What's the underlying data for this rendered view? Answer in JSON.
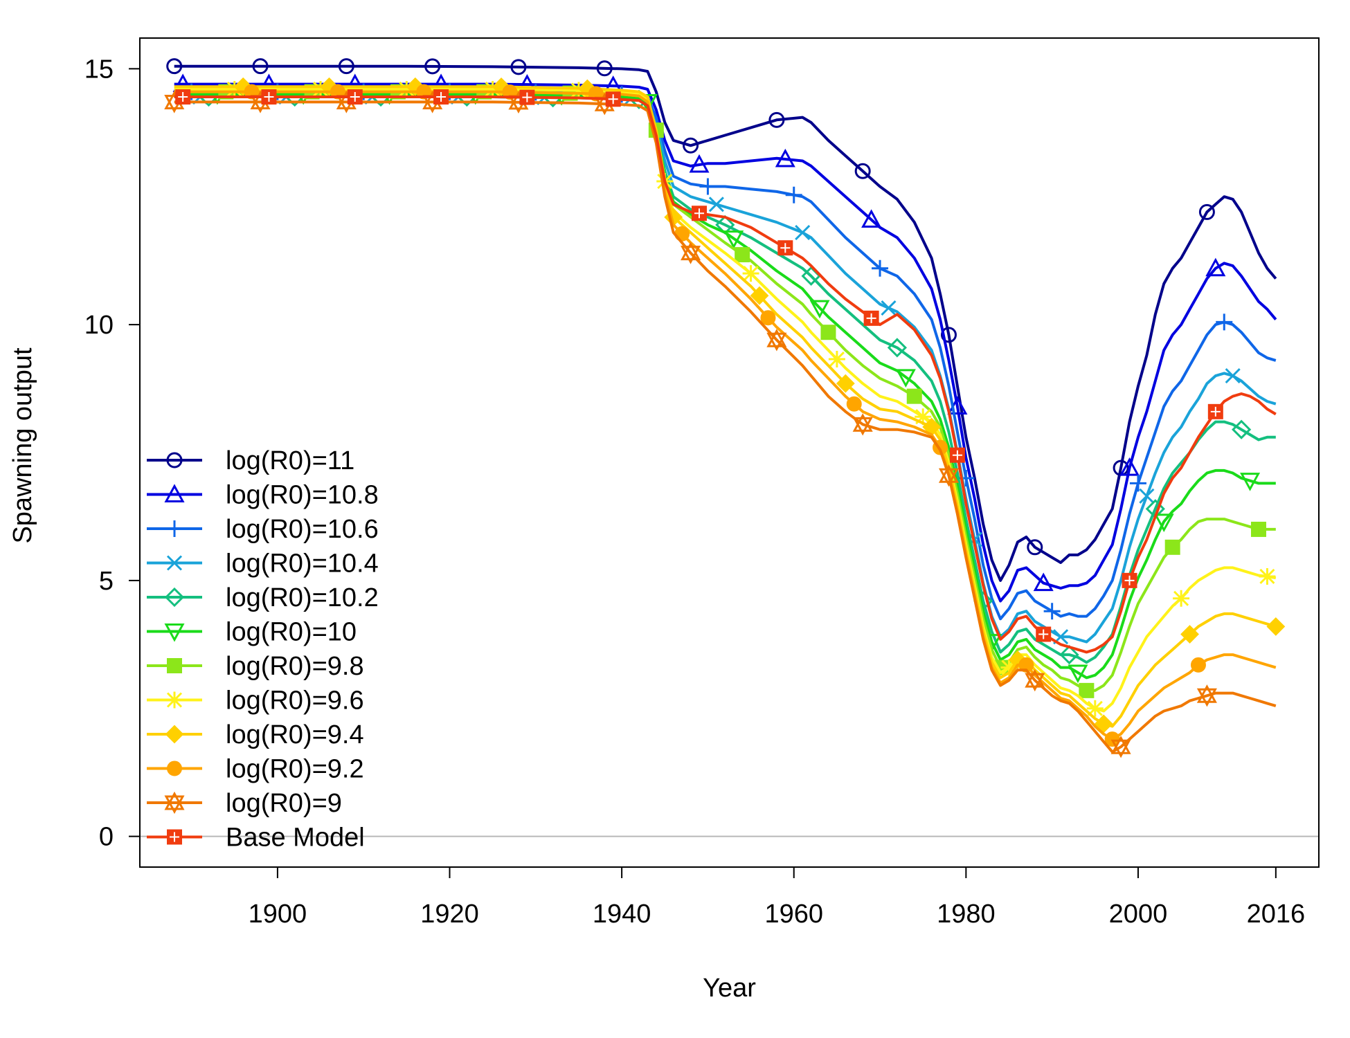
{
  "chart_data": {
    "type": "line",
    "title": "",
    "xlabel": "Year",
    "ylabel": "Spawning output",
    "xlim": [
      1884,
      2021
    ],
    "ylim": [
      -0.6,
      15.6
    ],
    "xticks": [
      1900,
      1920,
      1940,
      1960,
      1980,
      2000,
      2016
    ],
    "yticks": [
      0,
      5,
      10,
      15
    ],
    "reference_line_y": 0,
    "grid": false,
    "legend_position": "left",
    "x": [
      1888,
      1895,
      1905,
      1915,
      1925,
      1935,
      1940,
      1942,
      1943,
      1944,
      1945,
      1946,
      1948,
      1950,
      1952,
      1955,
      1958,
      1961,
      1962,
      1964,
      1966,
      1968,
      1970,
      1972,
      1974,
      1976,
      1977,
      1978,
      1979,
      1980,
      1981,
      1982,
      1983,
      1984,
      1985,
      1986,
      1987,
      1988,
      1989,
      1990,
      1991,
      1992,
      1993,
      1994,
      1995,
      1996,
      1997,
      1998,
      1999,
      2000,
      2001,
      2002,
      2003,
      2004,
      2005,
      2006,
      2007,
      2008,
      2009,
      2010,
      2011,
      2012,
      2013,
      2014,
      2015,
      2016
    ],
    "series": [
      {
        "name": "log(R0)=11",
        "color": "#00008B",
        "marker": "circle",
        "values": [
          15.05,
          15.05,
          15.05,
          15.05,
          15.04,
          15.02,
          15.0,
          14.98,
          14.95,
          14.55,
          13.95,
          13.6,
          13.5,
          13.6,
          13.7,
          13.85,
          14.0,
          14.05,
          13.95,
          13.6,
          13.3,
          13.0,
          12.7,
          12.45,
          12.0,
          11.3,
          10.6,
          9.8,
          8.8,
          7.8,
          7.0,
          6.1,
          5.4,
          5.0,
          5.3,
          5.75,
          5.85,
          5.65,
          5.55,
          5.45,
          5.35,
          5.5,
          5.5,
          5.6,
          5.8,
          6.1,
          6.4,
          7.2,
          8.1,
          8.8,
          9.4,
          10.2,
          10.8,
          11.1,
          11.3,
          11.6,
          11.9,
          12.2,
          12.35,
          12.5,
          12.45,
          12.2,
          11.8,
          11.4,
          11.1,
          10.9
        ]
      },
      {
        "name": "log(R0)=10.8",
        "color": "#0000E0",
        "marker": "triangle",
        "values": [
          14.7,
          14.7,
          14.7,
          14.7,
          14.7,
          14.68,
          14.66,
          14.64,
          14.6,
          14.2,
          13.6,
          13.2,
          13.1,
          13.15,
          13.15,
          13.2,
          13.25,
          13.2,
          13.1,
          12.8,
          12.5,
          12.2,
          11.9,
          11.7,
          11.3,
          10.7,
          10.1,
          9.3,
          8.4,
          7.4,
          6.6,
          5.7,
          5.0,
          4.6,
          4.8,
          5.2,
          5.25,
          5.1,
          4.95,
          4.9,
          4.85,
          4.9,
          4.9,
          4.95,
          5.1,
          5.4,
          5.7,
          6.4,
          7.2,
          7.8,
          8.3,
          8.9,
          9.5,
          9.8,
          10.0,
          10.3,
          10.6,
          10.9,
          11.1,
          11.2,
          11.15,
          10.95,
          10.7,
          10.45,
          10.3,
          10.1
        ]
      },
      {
        "name": "log(R0)=10.6",
        "color": "#0F66E8",
        "marker": "plus",
        "values": [
          14.55,
          14.55,
          14.55,
          14.55,
          14.55,
          14.53,
          14.5,
          14.48,
          14.45,
          14.05,
          13.4,
          12.9,
          12.75,
          12.7,
          12.7,
          12.65,
          12.6,
          12.5,
          12.4,
          12.05,
          11.7,
          11.4,
          11.1,
          10.95,
          10.6,
          10.1,
          9.55,
          8.8,
          7.9,
          7.0,
          6.2,
          5.3,
          4.65,
          4.25,
          4.45,
          4.75,
          4.8,
          4.6,
          4.5,
          4.4,
          4.3,
          4.35,
          4.3,
          4.3,
          4.45,
          4.7,
          5.0,
          5.6,
          6.3,
          6.9,
          7.4,
          7.9,
          8.4,
          8.7,
          8.9,
          9.2,
          9.5,
          9.8,
          10.0,
          10.05,
          10.0,
          9.85,
          9.65,
          9.45,
          9.35,
          9.3
        ]
      },
      {
        "name": "log(R0)=10.4",
        "color": "#1AA3D9",
        "marker": "x",
        "values": [
          14.45,
          14.45,
          14.45,
          14.45,
          14.45,
          14.43,
          14.42,
          14.4,
          14.35,
          13.9,
          13.2,
          12.7,
          12.5,
          12.4,
          12.3,
          12.15,
          12.0,
          11.8,
          11.7,
          11.35,
          11.0,
          10.7,
          10.4,
          10.25,
          9.95,
          9.5,
          9.0,
          8.35,
          7.5,
          6.6,
          5.8,
          4.95,
          4.3,
          3.9,
          4.05,
          4.35,
          4.4,
          4.2,
          4.1,
          4.0,
          3.9,
          3.9,
          3.85,
          3.8,
          3.95,
          4.2,
          4.45,
          5.0,
          5.65,
          6.2,
          6.65,
          7.1,
          7.5,
          7.8,
          8.0,
          8.3,
          8.55,
          8.85,
          9.0,
          9.05,
          9.0,
          8.9,
          8.75,
          8.6,
          8.5,
          8.45
        ]
      },
      {
        "name": "log(R0)=10.2",
        "color": "#14BF7F",
        "marker": "diamond",
        "values": [
          14.45,
          14.45,
          14.45,
          14.45,
          14.45,
          14.43,
          14.42,
          14.4,
          14.33,
          13.8,
          13.0,
          12.5,
          12.25,
          12.1,
          11.95,
          11.7,
          11.4,
          11.1,
          10.95,
          10.6,
          10.3,
          10.0,
          9.7,
          9.55,
          9.3,
          8.9,
          8.5,
          7.9,
          7.1,
          6.2,
          5.4,
          4.6,
          4.0,
          3.6,
          3.75,
          4.0,
          4.05,
          3.85,
          3.75,
          3.65,
          3.55,
          3.55,
          3.5,
          3.4,
          3.5,
          3.7,
          3.95,
          4.5,
          5.1,
          5.6,
          6.0,
          6.4,
          6.8,
          7.1,
          7.3,
          7.5,
          7.75,
          7.95,
          8.1,
          8.1,
          8.05,
          7.95,
          7.85,
          7.75,
          7.8,
          7.8
        ]
      },
      {
        "name": "log(R0)=10",
        "color": "#1ADB1A",
        "marker": "triangle-down",
        "values": [
          14.5,
          14.5,
          14.5,
          14.5,
          14.5,
          14.48,
          14.45,
          14.43,
          14.35,
          13.8,
          12.9,
          12.4,
          12.15,
          11.95,
          11.8,
          11.45,
          11.05,
          10.7,
          10.5,
          10.15,
          9.85,
          9.55,
          9.25,
          9.1,
          8.85,
          8.5,
          8.15,
          7.6,
          6.85,
          6.0,
          5.2,
          4.4,
          3.8,
          3.45,
          3.55,
          3.8,
          3.85,
          3.65,
          3.55,
          3.45,
          3.3,
          3.3,
          3.2,
          3.1,
          3.15,
          3.3,
          3.55,
          4.05,
          4.6,
          5.05,
          5.4,
          5.8,
          6.15,
          6.35,
          6.5,
          6.75,
          6.95,
          7.1,
          7.15,
          7.15,
          7.1,
          7.0,
          6.95,
          6.9,
          6.9,
          6.9
        ]
      },
      {
        "name": "log(R0)=9.8",
        "color": "#8CE61A",
        "marker": "square-filled",
        "values": [
          14.55,
          14.55,
          14.55,
          14.55,
          14.55,
          14.52,
          14.5,
          14.47,
          14.38,
          13.8,
          12.85,
          12.35,
          12.1,
          11.85,
          11.6,
          11.25,
          10.8,
          10.4,
          10.2,
          9.85,
          9.5,
          9.2,
          8.95,
          8.8,
          8.6,
          8.3,
          8.0,
          7.45,
          6.7,
          5.85,
          5.05,
          4.25,
          3.65,
          3.3,
          3.4,
          3.65,
          3.7,
          3.5,
          3.35,
          3.25,
          3.1,
          3.05,
          2.95,
          2.85,
          2.85,
          2.95,
          3.15,
          3.6,
          4.1,
          4.55,
          4.85,
          5.15,
          5.45,
          5.65,
          5.8,
          6.0,
          6.15,
          6.2,
          6.2,
          6.2,
          6.15,
          6.1,
          6.05,
          6.0,
          6.0,
          6.0
        ]
      },
      {
        "name": "log(R0)=9.6",
        "color": "#FFF21A",
        "marker": "asterisk",
        "values": [
          14.6,
          14.6,
          14.6,
          14.6,
          14.6,
          14.58,
          14.55,
          14.52,
          14.42,
          13.8,
          12.8,
          12.2,
          11.9,
          11.65,
          11.4,
          11.0,
          10.5,
          10.05,
          9.85,
          9.5,
          9.15,
          8.85,
          8.6,
          8.5,
          8.3,
          8.1,
          7.85,
          7.3,
          6.55,
          5.7,
          4.9,
          4.1,
          3.5,
          3.2,
          3.3,
          3.55,
          3.55,
          3.35,
          3.2,
          3.05,
          2.9,
          2.85,
          2.75,
          2.6,
          2.5,
          2.45,
          2.6,
          2.9,
          3.3,
          3.6,
          3.9,
          4.1,
          4.3,
          4.5,
          4.65,
          4.85,
          5.0,
          5.1,
          5.2,
          5.25,
          5.25,
          5.2,
          5.15,
          5.1,
          5.08,
          5.05
        ]
      },
      {
        "name": "log(R0)=9.4",
        "color": "#FFD000",
        "marker": "diamond-filled",
        "values": [
          14.65,
          14.65,
          14.65,
          14.65,
          14.65,
          14.62,
          14.58,
          14.55,
          14.45,
          13.8,
          12.75,
          12.1,
          11.8,
          11.5,
          11.2,
          10.75,
          10.2,
          9.75,
          9.55,
          9.2,
          8.85,
          8.55,
          8.35,
          8.3,
          8.15,
          8.0,
          7.75,
          7.2,
          6.45,
          5.6,
          4.8,
          4.0,
          3.4,
          3.1,
          3.2,
          3.45,
          3.45,
          3.25,
          3.1,
          2.95,
          2.8,
          2.75,
          2.6,
          2.45,
          2.3,
          2.2,
          2.15,
          2.35,
          2.65,
          2.95,
          3.15,
          3.35,
          3.5,
          3.65,
          3.8,
          3.95,
          4.1,
          4.2,
          4.3,
          4.35,
          4.35,
          4.3,
          4.25,
          4.2,
          4.15,
          4.1
        ]
      },
      {
        "name": "log(R0)=9.2",
        "color": "#FFA500",
        "marker": "circle-filled",
        "values": [
          14.55,
          14.55,
          14.55,
          14.55,
          14.55,
          14.52,
          14.5,
          14.47,
          14.35,
          13.7,
          12.6,
          11.95,
          11.6,
          11.3,
          11.0,
          10.5,
          9.95,
          9.5,
          9.3,
          8.95,
          8.6,
          8.3,
          8.15,
          8.1,
          8.0,
          7.85,
          7.6,
          7.1,
          6.35,
          5.5,
          4.7,
          3.9,
          3.3,
          3.0,
          3.1,
          3.35,
          3.35,
          3.15,
          3.0,
          2.85,
          2.7,
          2.65,
          2.5,
          2.35,
          2.15,
          2.0,
          1.9,
          2.0,
          2.2,
          2.45,
          2.6,
          2.75,
          2.9,
          3.0,
          3.1,
          3.2,
          3.35,
          3.45,
          3.5,
          3.55,
          3.55,
          3.5,
          3.45,
          3.4,
          3.35,
          3.3
        ]
      },
      {
        "name": "log(R0)=9",
        "color": "#F07800",
        "marker": "star",
        "values": [
          14.35,
          14.35,
          14.35,
          14.35,
          14.35,
          14.33,
          14.3,
          14.28,
          14.18,
          13.55,
          12.5,
          11.8,
          11.4,
          11.05,
          10.75,
          10.25,
          9.7,
          9.2,
          9.0,
          8.6,
          8.3,
          8.05,
          7.95,
          7.95,
          7.9,
          7.8,
          7.55,
          7.05,
          6.3,
          5.45,
          4.65,
          3.85,
          3.25,
          2.95,
          3.05,
          3.25,
          3.25,
          3.05,
          2.9,
          2.75,
          2.65,
          2.6,
          2.45,
          2.25,
          2.05,
          1.85,
          1.65,
          1.75,
          1.9,
          2.05,
          2.2,
          2.35,
          2.45,
          2.5,
          2.55,
          2.65,
          2.7,
          2.75,
          2.8,
          2.8,
          2.8,
          2.75,
          2.7,
          2.65,
          2.6,
          2.55
        ]
      },
      {
        "name": "Base Model",
        "color": "#F03C0F",
        "marker": "square-plus",
        "values": [
          14.45,
          14.45,
          14.45,
          14.45,
          14.45,
          14.43,
          14.4,
          14.38,
          14.28,
          13.7,
          12.8,
          12.35,
          12.2,
          12.15,
          12.1,
          11.9,
          11.6,
          11.3,
          11.15,
          10.8,
          10.5,
          10.25,
          10.0,
          10.2,
          9.9,
          9.4,
          8.95,
          8.3,
          7.45,
          6.5,
          5.7,
          4.9,
          4.25,
          3.85,
          4.0,
          4.25,
          4.3,
          4.1,
          3.95,
          3.85,
          3.75,
          3.7,
          3.65,
          3.6,
          3.65,
          3.75,
          3.9,
          4.4,
          5.0,
          5.45,
          5.8,
          6.25,
          6.7,
          7.0,
          7.2,
          7.5,
          7.8,
          8.05,
          8.3,
          8.5,
          8.6,
          8.65,
          8.6,
          8.5,
          8.35,
          8.25
        ]
      }
    ]
  }
}
